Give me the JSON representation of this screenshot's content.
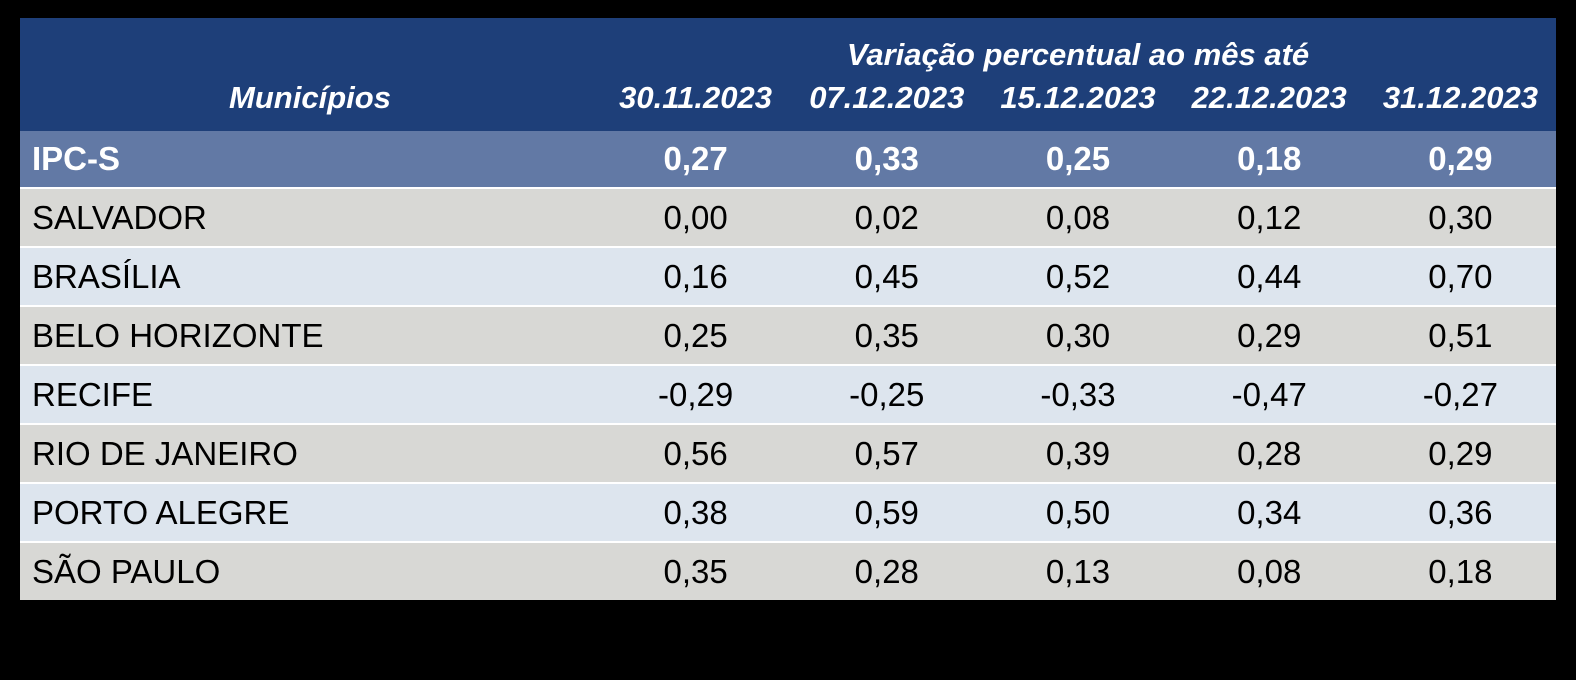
{
  "table": {
    "header": {
      "group_title": "Variação percentual ao mês até",
      "municipios_label": "Municípios",
      "date_columns": [
        "30.11.2023",
        "07.12.2023",
        "15.12.2023",
        "22.12.2023",
        "31.12.2023"
      ]
    },
    "summary_row": {
      "label": "IPC-S",
      "values": [
        "0,27",
        "0,33",
        "0,25",
        "0,18",
        "0,29"
      ]
    },
    "rows": [
      {
        "label": "SALVADOR",
        "values": [
          "0,00",
          "0,02",
          "0,08",
          "0,12",
          "0,30"
        ]
      },
      {
        "label": "BRASÍLIA",
        "values": [
          "0,16",
          "0,45",
          "0,52",
          "0,44",
          "0,70"
        ]
      },
      {
        "label": "BELO HORIZONTE",
        "values": [
          "0,25",
          "0,35",
          "0,30",
          "0,29",
          "0,51"
        ]
      },
      {
        "label": "RECIFE",
        "values": [
          "-0,29",
          "-0,25",
          "-0,33",
          "-0,47",
          "-0,27"
        ]
      },
      {
        "label": "RIO DE JANEIRO",
        "values": [
          "0,56",
          "0,57",
          "0,39",
          "0,28",
          "0,29"
        ]
      },
      {
        "label": "PORTO ALEGRE",
        "values": [
          "0,38",
          "0,59",
          "0,50",
          "0,34",
          "0,36"
        ]
      },
      {
        "label": "SÃO PAULO",
        "values": [
          "0,35",
          "0,28",
          "0,13",
          "0,08",
          "0,18"
        ]
      }
    ],
    "colors": {
      "background": "#000000",
      "header_navy": "#1e3f79",
      "summary_slate_blue": "#6279a5",
      "row_gray": "#d8d8d5",
      "row_light_blue": "#dde5ee",
      "separator_white": "#ffffff",
      "header_text": "#ffffff",
      "body_text": "#000000"
    }
  },
  "chart_data": {
    "type": "table",
    "title": "Variação percentual ao mês até",
    "row_header_label": "Municípios",
    "columns": [
      "30.11.2023",
      "07.12.2023",
      "15.12.2023",
      "22.12.2023",
      "31.12.2023"
    ],
    "series": [
      {
        "name": "IPC-S",
        "values": [
          0.27,
          0.33,
          0.25,
          0.18,
          0.29
        ]
      },
      {
        "name": "SALVADOR",
        "values": [
          0.0,
          0.02,
          0.08,
          0.12,
          0.3
        ]
      },
      {
        "name": "BRASÍLIA",
        "values": [
          0.16,
          0.45,
          0.52,
          0.44,
          0.7
        ]
      },
      {
        "name": "BELO HORIZONTE",
        "values": [
          0.25,
          0.35,
          0.3,
          0.29,
          0.51
        ]
      },
      {
        "name": "RECIFE",
        "values": [
          -0.29,
          -0.25,
          -0.33,
          -0.47,
          -0.27
        ]
      },
      {
        "name": "RIO DE JANEIRO",
        "values": [
          0.56,
          0.57,
          0.39,
          0.28,
          0.29
        ]
      },
      {
        "name": "PORTO ALEGRE",
        "values": [
          0.38,
          0.59,
          0.5,
          0.34,
          0.36
        ]
      },
      {
        "name": "SÃO PAULO",
        "values": [
          0.35,
          0.28,
          0.13,
          0.08,
          0.18
        ]
      }
    ],
    "layout": {
      "decimal_separator": "comma",
      "summary_row_highlighted": "IPC-S",
      "alternating_row_shading": true
    }
  }
}
